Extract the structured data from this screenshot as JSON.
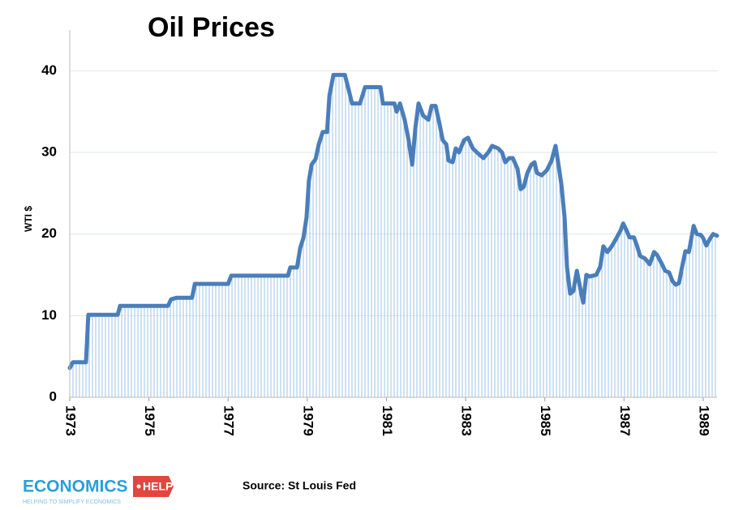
{
  "chart_data": {
    "type": "line",
    "title": "Oil Prices",
    "ylabel": "WTI $",
    "source": "Source: St Louis Fed",
    "logo": {
      "name": "ECONOMICS",
      "tag": "HELP",
      "tagline": "HELPING TO SIMPLIFY ECONOMICS"
    },
    "color": "#4a7ebb",
    "fill_color": "#9dc3e6",
    "grid": true,
    "xlim": [
      1973,
      1989.35
    ],
    "xticks": [
      1973,
      1975,
      1977,
      1979,
      1981,
      1983,
      1985,
      1987,
      1989
    ],
    "ylim": [
      0,
      45
    ],
    "yticks": [
      0,
      10,
      20,
      30,
      40
    ],
    "x": [
      1973.0,
      1973.08,
      1973.41,
      1973.47,
      1974.21,
      1974.27,
      1975.48,
      1975.56,
      1975.7,
      1976.09,
      1976.16,
      1977.0,
      1977.08,
      1978.51,
      1978.57,
      1978.74,
      1978.82,
      1978.9,
      1978.98,
      1979.04,
      1979.11,
      1979.21,
      1979.29,
      1979.39,
      1979.5,
      1979.56,
      1979.66,
      1979.95,
      1980.03,
      1980.13,
      1980.33,
      1980.46,
      1980.85,
      1980.91,
      1981.2,
      1981.26,
      1981.34,
      1981.46,
      1981.56,
      1981.65,
      1981.73,
      1981.81,
      1981.93,
      1982.06,
      1982.14,
      1982.24,
      1982.34,
      1982.42,
      1982.51,
      1982.57,
      1982.67,
      1982.75,
      1982.83,
      1982.96,
      1983.06,
      1983.18,
      1983.33,
      1983.45,
      1983.57,
      1983.67,
      1983.82,
      1983.92,
      1984.0,
      1984.1,
      1984.19,
      1984.31,
      1984.39,
      1984.47,
      1984.56,
      1984.66,
      1984.74,
      1984.8,
      1984.92,
      1985.05,
      1985.17,
      1985.27,
      1985.33,
      1985.42,
      1985.5,
      1985.56,
      1985.64,
      1985.72,
      1985.81,
      1985.89,
      1985.97,
      1986.05,
      1986.13,
      1986.22,
      1986.3,
      1986.4,
      1986.48,
      1986.58,
      1986.69,
      1986.81,
      1986.92,
      1986.98,
      1987.06,
      1987.14,
      1987.25,
      1987.32,
      1987.41,
      1987.53,
      1987.65,
      1987.76,
      1987.84,
      1987.94,
      1988.04,
      1988.14,
      1988.23,
      1988.31,
      1988.39,
      1988.47,
      1988.55,
      1988.64,
      1988.72,
      1988.76,
      1988.84,
      1988.94,
      1989.0,
      1989.08,
      1989.17,
      1989.25,
      1989.35
    ],
    "values": [
      3.6,
      4.3,
      4.3,
      10.1,
      10.1,
      11.2,
      11.2,
      12.0,
      12.2,
      12.2,
      13.9,
      13.9,
      14.9,
      14.9,
      15.9,
      15.9,
      18.3,
      19.5,
      22,
      26.5,
      28.5,
      29.2,
      31,
      32.5,
      32.5,
      37,
      39.5,
      39.5,
      38,
      36,
      36,
      38,
      38,
      36,
      36,
      35,
      36,
      34,
      31.5,
      28.5,
      33,
      36,
      34.5,
      34,
      35.7,
      35.7,
      33.5,
      31.5,
      31,
      29,
      28.8,
      30.5,
      30,
      31.5,
      31.8,
      30.5,
      29.8,
      29.3,
      30,
      30.8,
      30.5,
      30,
      28.8,
      29.3,
      29.3,
      28,
      25.5,
      25.8,
      27.5,
      28.5,
      28.8,
      27.5,
      27.2,
      27.8,
      29,
      30.8,
      29,
      26,
      22,
      16,
      12.7,
      13,
      15.5,
      13.5,
      11.6,
      15,
      14.8,
      14.9,
      15.0,
      16,
      18.5,
      17.8,
      18.5,
      19.5,
      20.5,
      21.3,
      20.5,
      19.6,
      19.6,
      18.7,
      17.3,
      17,
      16.3,
      17.8,
      17.4,
      16.5,
      15.5,
      15.3,
      14.2,
      13.8,
      14,
      16,
      17.9,
      17.8,
      20,
      21,
      20,
      19.9,
      19.5,
      18.6,
      19.4,
      20.0,
      19.8
    ]
  }
}
